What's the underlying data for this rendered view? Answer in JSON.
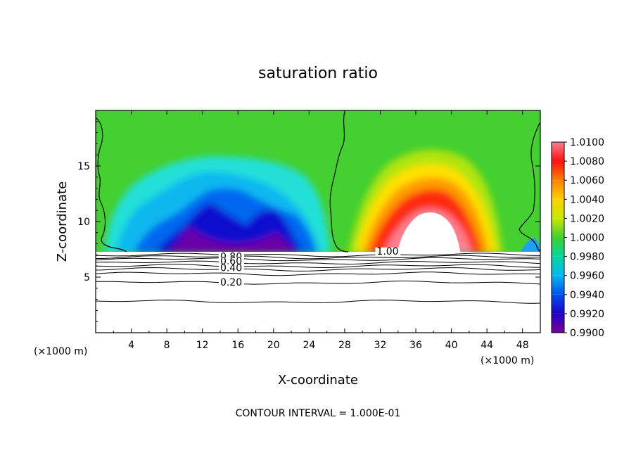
{
  "chart_data": {
    "type": "heatmap",
    "title": "saturation ratio",
    "xlabel": "X-coordinate",
    "ylabel": "Z-coordinate",
    "x_unit_label": "(×1000 m)",
    "x_unit_label_right": "(×1000 m)",
    "footer": "CONTOUR INTERVAL = 1.000E-01",
    "xlim": [
      0,
      50
    ],
    "ylim": [
      0,
      20
    ],
    "x_ticks": [
      4,
      8,
      12,
      16,
      20,
      24,
      28,
      32,
      36,
      40,
      44,
      48
    ],
    "y_ticks": [
      5,
      10,
      15
    ],
    "colorbar": {
      "levels": [
        "0.9900",
        "0.9920",
        "0.9940",
        "0.9960",
        "0.9980",
        "1.0000",
        "1.0020",
        "1.0040",
        "1.0060",
        "1.0080",
        "1.0100"
      ],
      "colors": [
        "#7a0098",
        "#2000c8",
        "#0050f0",
        "#00b8f0",
        "#00d8a0",
        "#40d030",
        "#c8e800",
        "#ffd000",
        "#ff8000",
        "#ff1010",
        "#ff8090"
      ]
    },
    "contour_labels": [
      {
        "text": "0.80",
        "x": 14.0,
        "z": 6.6
      },
      {
        "text": "0.60",
        "x": 14.0,
        "z": 6.2
      },
      {
        "text": "0.40",
        "x": 14.0,
        "z": 5.6
      },
      {
        "text": "0.20",
        "x": 14.0,
        "z": 4.3
      },
      {
        "text": "1.00",
        "x": 31.6,
        "z": 7.1
      }
    ],
    "field_regions": [
      {
        "kind": "subsaturated_min",
        "x_range": [
          9,
          26
        ],
        "z_range": [
          8,
          15
        ],
        "value_min": 0.99
      },
      {
        "kind": "supersaturated_max",
        "x_range": [
          31,
          45
        ],
        "z_range": [
          7.5,
          15
        ],
        "value_max": 1.01
      }
    ],
    "cloud_base_z": 7.2,
    "contour_heights_z": [
      7.0,
      6.8,
      6.6,
      6.3,
      6.0,
      5.7,
      5.3,
      4.5,
      2.8
    ]
  }
}
